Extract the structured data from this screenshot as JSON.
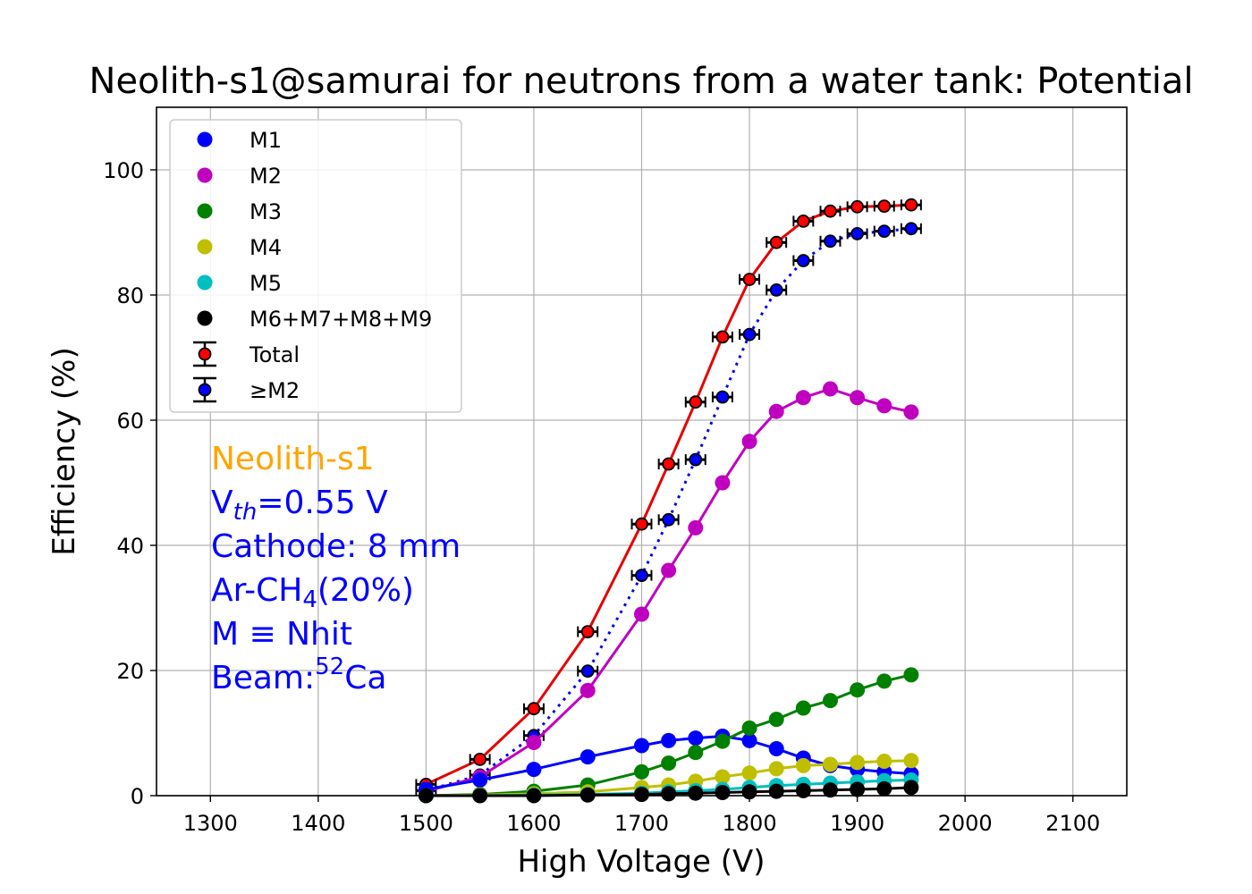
{
  "chart_data": {
    "type": "line",
    "title": "Neolith-s1@samurai for neutrons from a water tank: Potential",
    "xlabel": "High Voltage (V)",
    "ylabel": "Efficiency (%)",
    "xlim": [
      1250,
      2150
    ],
    "ylim": [
      0,
      110
    ],
    "xticks": [
      1300,
      1400,
      1500,
      1600,
      1700,
      1800,
      1900,
      2000,
      2100
    ],
    "yticks": [
      0,
      20,
      40,
      60,
      80,
      100
    ],
    "grid": true,
    "legend_position": "top-left",
    "x": [
      1500,
      1550,
      1600,
      1650,
      1700,
      1725,
      1750,
      1775,
      1800,
      1825,
      1850,
      1875,
      1900,
      1925,
      1950
    ],
    "series": [
      {
        "name": "M1",
        "color": "#0000ff",
        "style": "line-marker",
        "values": [
          1.0,
          2.5,
          4.2,
          6.2,
          8.0,
          8.8,
          9.2,
          9.5,
          8.8,
          7.5,
          6.0,
          4.8,
          4.2,
          3.8,
          3.5
        ]
      },
      {
        "name": "M2",
        "color": "#bf00bf",
        "style": "line-marker",
        "values": [
          0.7,
          3.0,
          8.5,
          16.8,
          29.0,
          36.0,
          42.8,
          50.0,
          56.6,
          61.4,
          63.6,
          65.0,
          63.6,
          62.3,
          61.3
        ]
      },
      {
        "name": "M3",
        "color": "#008000",
        "style": "line-marker",
        "values": [
          0.0,
          0.2,
          0.7,
          1.7,
          3.8,
          5.2,
          6.9,
          8.7,
          10.8,
          12.2,
          14.0,
          15.2,
          16.9,
          18.3,
          19.3
        ]
      },
      {
        "name": "M4",
        "color": "#bfbf00",
        "style": "line-marker",
        "values": [
          0.0,
          0.1,
          0.3,
          0.6,
          1.3,
          1.7,
          2.3,
          3.0,
          3.6,
          4.3,
          4.8,
          5.0,
          5.3,
          5.5,
          5.6
        ]
      },
      {
        "name": "M5",
        "color": "#00bfbf",
        "style": "line-marker",
        "values": [
          0.0,
          0.0,
          0.1,
          0.2,
          0.4,
          0.6,
          0.8,
          1.0,
          1.3,
          1.6,
          1.8,
          2.0,
          2.2,
          2.4,
          2.5
        ]
      },
      {
        "name": "M6+M7+M8+M9",
        "color": "#000000",
        "style": "line-marker",
        "values": [
          0.0,
          0.0,
          0.0,
          0.1,
          0.2,
          0.3,
          0.4,
          0.5,
          0.6,
          0.7,
          0.8,
          0.9,
          1.0,
          1.1,
          1.3
        ]
      },
      {
        "name": "Total",
        "color": "#ff0000",
        "line_color": "#e60000",
        "style": "errorbar-solid",
        "values": [
          1.8,
          5.8,
          13.9,
          26.2,
          43.4,
          53.0,
          62.9,
          73.3,
          82.5,
          88.4,
          91.8,
          93.4,
          94.1,
          94.2,
          94.4
        ],
        "xerr": 7
      },
      {
        "name": "≥M2",
        "color": "#0000ff",
        "line_color": "#0000e6",
        "style": "errorbar-dotted",
        "values": [
          0.8,
          3.3,
          9.6,
          19.9,
          35.2,
          44.1,
          53.7,
          63.7,
          73.7,
          80.8,
          85.5,
          88.6,
          89.8,
          90.2,
          90.6
        ],
        "xerr": 7
      }
    ],
    "annotations": {
      "detector": "Neolith-s1",
      "detector_color": "#ffa500",
      "text_color": "#0000ff",
      "vth_main": "V",
      "vth_sub": "th",
      "vth_rest": "=0.55 V",
      "cathode": "Cathode: 8 mm",
      "gas_main": "Ar-CH",
      "gas_sub": "4",
      "gas_rest": "(20%)",
      "mult_def": "M ≡ Nhit",
      "beam_main": "Beam:",
      "beam_sup": "52",
      "beam_rest": "Ca"
    }
  }
}
